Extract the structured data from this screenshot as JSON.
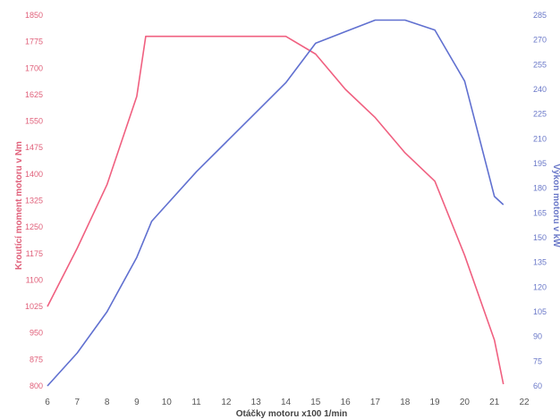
{
  "chart_data": {
    "type": "line",
    "xlabel": "Otáčky motoru x100 1/min",
    "ylabel_left": "Kroutící moment motoru v Nm",
    "ylabel_right": "Výkon motoru v kW",
    "x_ticks": [
      "6",
      "7",
      "8",
      "9",
      "10",
      "11",
      "12",
      "13",
      "14",
      "15",
      "16",
      "17",
      "18",
      "19",
      "20",
      "21",
      "22"
    ],
    "y_left_ticks": [
      "1850",
      "1775",
      "1700",
      "1625",
      "1550",
      "1475",
      "1400",
      "1325",
      "1250",
      "1175",
      "1100",
      "1025",
      "950",
      "875",
      "800"
    ],
    "y_right_ticks": [
      "285",
      "270",
      "255",
      "240",
      "225",
      "210",
      "195",
      "180",
      "165",
      "150",
      "135",
      "120",
      "105",
      "90",
      "75",
      "60"
    ],
    "ylim_left": [
      800,
      1850
    ],
    "ylim_right": [
      60,
      285
    ],
    "xlim": [
      6,
      22
    ],
    "grid": false,
    "legend": "none",
    "colors": {
      "torque": "#f06080",
      "power": "#6070d0"
    },
    "series": [
      {
        "axis": "left",
        "color": "#f06080",
        "x": [
          6,
          7,
          8,
          9,
          9.3,
          10,
          11,
          12,
          13,
          14,
          15,
          16,
          17,
          18,
          19,
          20,
          21,
          21.3
        ],
        "y": [
          1025,
          1190,
          1370,
          1620,
          1790,
          1790,
          1790,
          1790,
          1790,
          1790,
          1740,
          1640,
          1560,
          1460,
          1380,
          1170,
          930,
          805
        ]
      },
      {
        "axis": "right",
        "color": "#6070d0",
        "x": [
          6,
          7,
          8,
          9,
          9.5,
          10,
          11,
          12,
          13,
          14,
          15,
          16,
          17,
          18,
          19,
          20,
          21,
          21.3
        ],
        "y": [
          60,
          80,
          105,
          138,
          160,
          170,
          190,
          208,
          226,
          244,
          268,
          275,
          282,
          282,
          276,
          245,
          175,
          170
        ]
      }
    ]
  }
}
